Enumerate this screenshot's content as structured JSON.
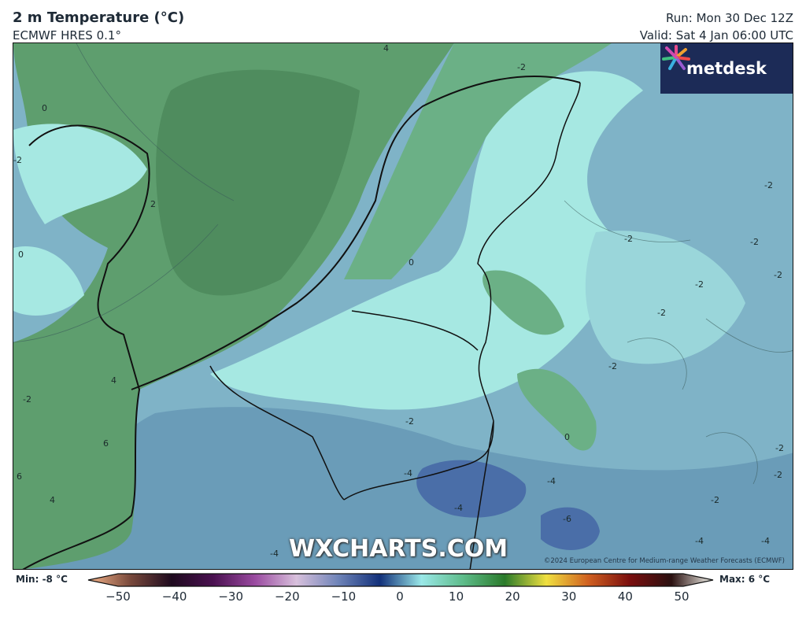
{
  "header": {
    "title": "2 m Temperature (°C)",
    "subtitle": "ECMWF HRES 0.1°",
    "run": "Run: Mon 30 Dec 12Z",
    "valid": "Valid: Sat 4 Jan 06:00 UTC"
  },
  "logo": {
    "text": "metdesk",
    "icon": "metdesk-burst-logo"
  },
  "watermark": "WXCHARTS.COM",
  "copyright": "©2024 European Centre for Medium-range Weather Forecasts (ECMWF)",
  "contour_labels": [
    "4",
    "-2",
    "0",
    "-2",
    "2",
    "0",
    "-2",
    "-2",
    "-2",
    "-2",
    "-2",
    "0",
    "-2",
    "-2",
    "-2",
    "4",
    "-2",
    "-2",
    "0",
    "6",
    "-4",
    "-4",
    "-2",
    "6",
    "4",
    "-6",
    "-2",
    "-4",
    "-4",
    "-4",
    "-4"
  ],
  "colorbar": {
    "min_label": "Min: -8 °C",
    "max_label": "Max: 6 °C",
    "ticks": [
      "−50",
      "−40",
      "−30",
      "−20",
      "−10",
      "0",
      "10",
      "20",
      "30",
      "40",
      "50"
    ],
    "range": [
      -50,
      50
    ],
    "colors": [
      "#f6b48a",
      "#7a4a3c",
      "#1e0a1e",
      "#4a1050",
      "#9a4aa0",
      "#d8c0dc",
      "#6f84b8",
      "#12307a",
      "#9ae8e8",
      "#5ebc8a",
      "#2a7a2a",
      "#f0e040",
      "#d06020",
      "#7a0e0e",
      "#2a1010",
      "#f8f8f0"
    ]
  }
}
